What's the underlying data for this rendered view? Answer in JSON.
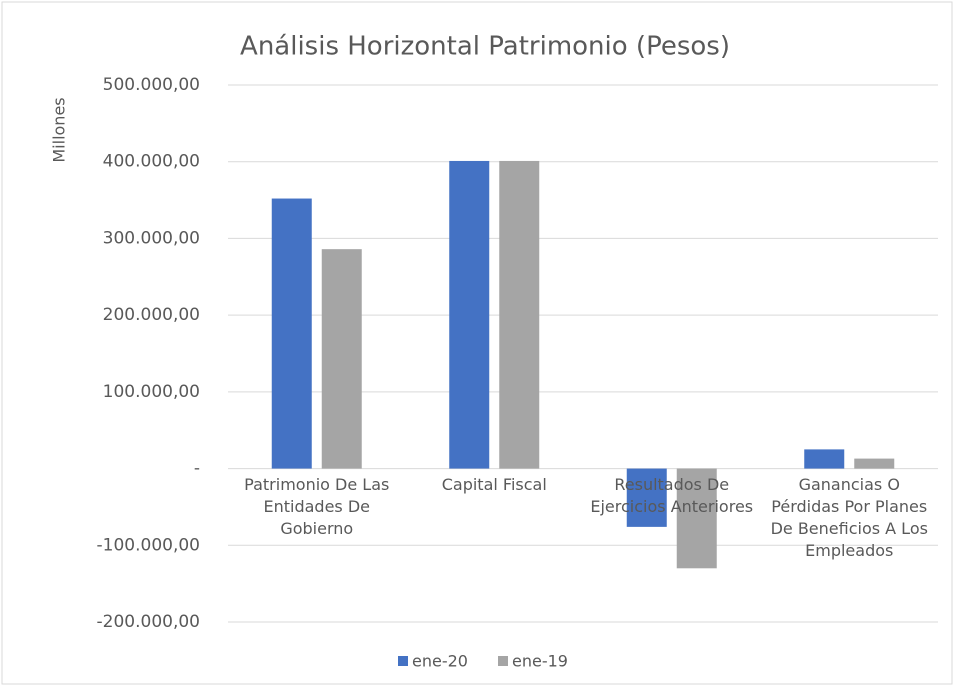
{
  "chart_data": {
    "type": "bar",
    "title": "Análisis Horizontal Patrimonio (Pesos)",
    "y_label": "Millones",
    "categories": [
      "Patrimonio De Las Entidades De Gobierno",
      "Capital Fiscal",
      "Resultados De Ejercicios Anteriores",
      "Ganancias O Pérdidas Por Planes De Beneficios A Los Empleados"
    ],
    "series": [
      {
        "name": "ene-20",
        "color": "#4472c4",
        "values": [
          352000,
          401000,
          -76000,
          25000
        ]
      },
      {
        "name": "ene-19",
        "color": "#a5a5a5",
        "values": [
          286000,
          401000,
          -130000,
          13000
        ]
      }
    ],
    "ylim": [
      -200000,
      500000
    ],
    "yticks": [
      {
        "value": -200000,
        "label": "-200.000,00"
      },
      {
        "value": -100000,
        "label": "-100.000,00"
      },
      {
        "value": 0,
        "label": "-"
      },
      {
        "value": 100000,
        "label": "100.000,00"
      },
      {
        "value": 200000,
        "label": "200.000,00"
      },
      {
        "value": 300000,
        "label": "300.000,00"
      },
      {
        "value": 400000,
        "label": "400.000,00"
      },
      {
        "value": 500000,
        "label": "500.000,00"
      }
    ],
    "grid": true,
    "legend": "bottom"
  }
}
